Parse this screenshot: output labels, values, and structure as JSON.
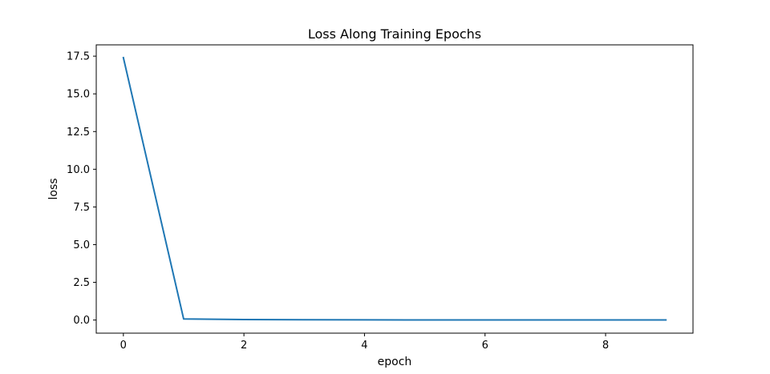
{
  "chart_data": {
    "type": "line",
    "title": "Loss Along Training Epochs",
    "xlabel": "epoch",
    "ylabel": "loss",
    "xlim": [
      -0.45,
      9.45
    ],
    "ylim": [
      -0.87,
      18.25
    ],
    "xticks": [
      0,
      2,
      4,
      6,
      8
    ],
    "yticks": [
      0.0,
      2.5,
      5.0,
      7.5,
      10.0,
      12.5,
      15.0,
      17.5
    ],
    "xtick_labels": [
      "0",
      "2",
      "4",
      "6",
      "8"
    ],
    "ytick_labels": [
      "0.0",
      "2.5",
      "5.0",
      "7.5",
      "10.0",
      "12.5",
      "15.0",
      "17.5"
    ],
    "grid": false,
    "line_color": "#1f77b4",
    "series": [
      {
        "x": [
          0,
          1,
          2,
          3,
          4,
          5,
          6,
          7,
          8,
          9
        ],
        "values": [
          17.4,
          0.07,
          0.03,
          0.02,
          0.01,
          0.008,
          0.006,
          0.005,
          0.004,
          0.003
        ]
      }
    ]
  }
}
